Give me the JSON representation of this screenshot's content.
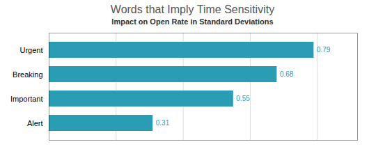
{
  "chart_data": {
    "type": "bar",
    "orientation": "horizontal",
    "title": "Words that Imply Time Sensitivity",
    "subtitle": "Impact on Open Rate in Standard Deviations",
    "categories": [
      "Alert",
      "Important",
      "Breaking",
      "Urgent"
    ],
    "values": [
      0.31,
      0.55,
      0.68,
      0.79
    ],
    "color": "#2A9DB5",
    "xlim": [
      0,
      0.92
    ],
    "xticks": [
      0.2,
      0.4,
      0.6,
      0.8
    ],
    "grid": true,
    "tick_labels": "y",
    "data_labels": true
  }
}
